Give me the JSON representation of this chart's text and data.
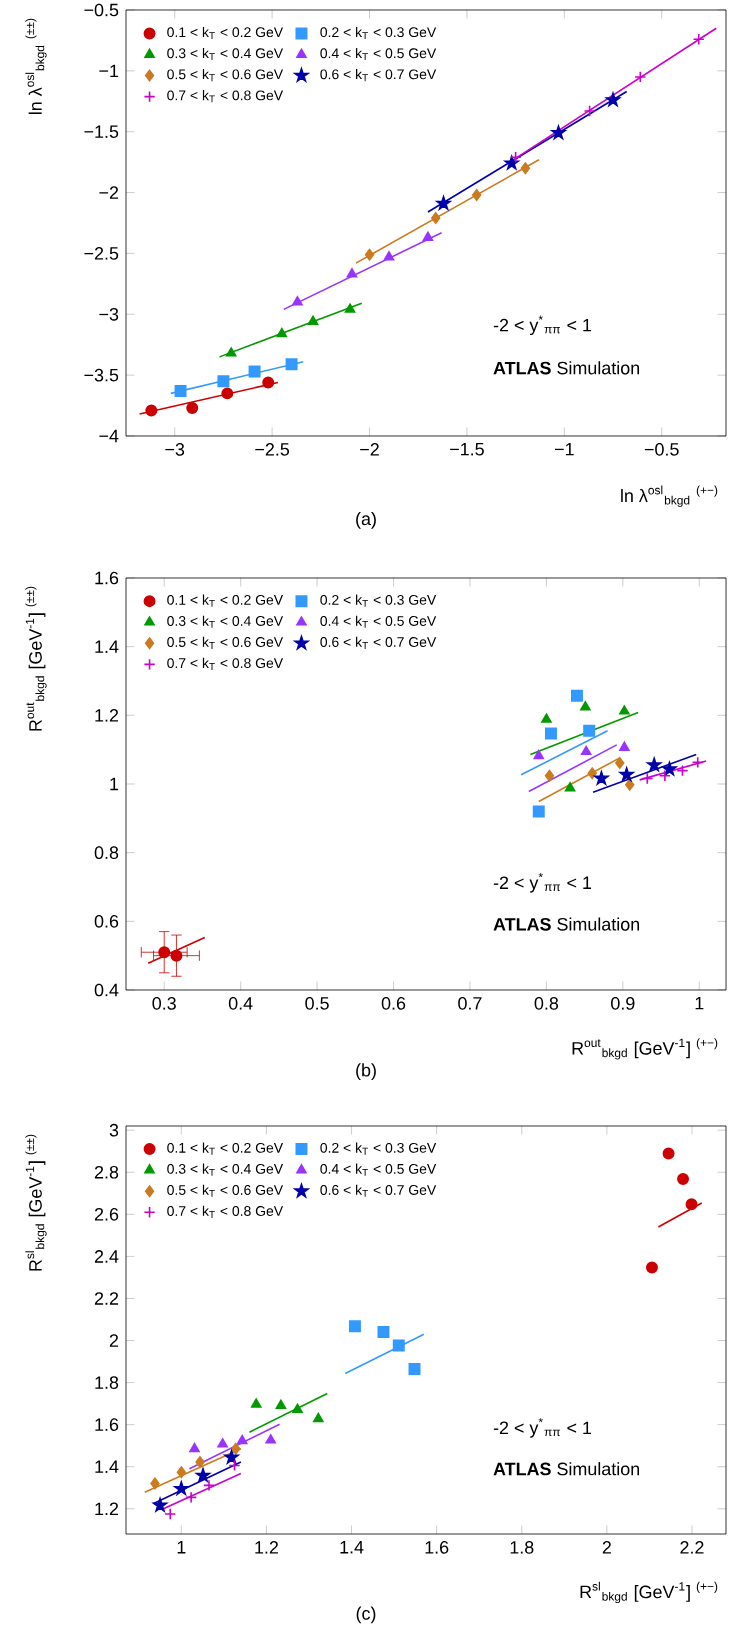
{
  "chart_data": [
    {
      "type": "scatter",
      "title": "(a)",
      "xlabel": "ln λ$^{osl}$$_{bkgd}$   $^{(+−)}$",
      "ylabel": "ln λ$^{osl}$$_{bkgd}$   $^{(±±)}$",
      "xlim": [
        -3.25,
        -0.17
      ],
      "ylim": [
        -4,
        -0.5
      ],
      "xticks": [
        {
          "value": -3,
          "label": "−3"
        },
        {
          "value": -2.5,
          "label": "−2.5"
        },
        {
          "value": -2,
          "label": "−2"
        },
        {
          "value": -1.5,
          "label": "−1.5"
        },
        {
          "value": -1,
          "label": "−1"
        },
        {
          "value": -0.5,
          "label": "−0.5"
        }
      ],
      "yticks": [
        {
          "value": -4,
          "label": "−4"
        },
        {
          "value": -3.5,
          "label": "−3.5"
        },
        {
          "value": -3,
          "label": "−3"
        },
        {
          "value": -2.5,
          "label": "−2.5"
        },
        {
          "value": -2,
          "label": "−2"
        },
        {
          "value": -1.5,
          "label": "−1.5"
        },
        {
          "value": -1,
          "label": "−1"
        },
        {
          "value": -0.5,
          "label": "−0.5"
        }
      ],
      "legend": "top left",
      "annotations": [
        "-2 < y$^{*}$$_{ππ}$ < 1",
        "**ATLAS** Simulation"
      ],
      "series": [
        {
          "name": "0.1 < k$_{T}$ < 0.2 GeV",
          "color": "#cc0000",
          "marker": "circle",
          "x": [
            -3.12,
            -2.91,
            -2.73,
            -2.52
          ],
          "values": [
            -3.79,
            -3.77,
            -3.65,
            -3.56
          ]
        },
        {
          "name": "0.2 < k$_{T}$ < 0.3 GeV",
          "color": "#3399ff",
          "marker": "square",
          "x": [
            -2.97,
            -2.75,
            -2.59,
            -2.4
          ],
          "values": [
            -3.63,
            -3.55,
            -3.47,
            -3.41
          ]
        },
        {
          "name": "0.3 < k$_{T}$ < 0.4 GeV",
          "color": "#009900",
          "marker": "triangle",
          "x": [
            -2.71,
            -2.45,
            -2.29,
            -2.1
          ],
          "values": [
            -3.32,
            -3.16,
            -3.06,
            -2.96
          ]
        },
        {
          "name": "0.4 < k$_{T}$ < 0.5 GeV",
          "color": "#9933ff",
          "marker": "triangle",
          "x": [
            -2.37,
            -2.09,
            -1.9,
            -1.7
          ],
          "values": [
            -2.9,
            -2.67,
            -2.53,
            -2.37
          ]
        },
        {
          "name": "0.5 < k$_{T}$ < 0.6 GeV",
          "color": "#cc7a1f",
          "marker": "diamond",
          "x": [
            -2.0,
            -1.66,
            -1.45,
            -1.2
          ],
          "values": [
            -2.51,
            -2.21,
            -2.02,
            -1.8
          ]
        },
        {
          "name": "0.6 < k$_{T}$ < 0.7 GeV",
          "color": "#0000aa",
          "marker": "star",
          "x": [
            -1.62,
            -1.27,
            -1.03,
            -0.75
          ],
          "values": [
            -2.09,
            -1.76,
            -1.51,
            -1.24
          ]
        },
        {
          "name": "0.7 < k$_{T}$ < 0.8 GeV",
          "color": "#cc00cc",
          "marker": "cross",
          "x": [
            -1.25,
            -0.87,
            -0.61,
            -0.31
          ],
          "values": [
            -1.71,
            -1.33,
            -1.05,
            -0.74
          ]
        },
        {
          "type": "line",
          "color": "#cc0000",
          "x": [
            -3.18,
            -2.47
          ],
          "values": [
            -3.82,
            -3.56
          ]
        },
        {
          "type": "line",
          "color": "#3399ff",
          "x": [
            -3.02,
            -2.34
          ],
          "values": [
            -3.65,
            -3.39
          ]
        },
        {
          "type": "line",
          "color": "#009900",
          "x": [
            -2.77,
            -2.04
          ],
          "values": [
            -3.35,
            -2.91
          ]
        },
        {
          "type": "line",
          "color": "#9933ff",
          "x": [
            -2.44,
            -1.63
          ],
          "values": [
            -2.96,
            -2.33
          ]
        },
        {
          "type": "line",
          "color": "#cc7a1f",
          "x": [
            -2.07,
            -1.13
          ],
          "values": [
            -2.58,
            -1.73
          ]
        },
        {
          "type": "line",
          "color": "#0000aa",
          "x": [
            -1.7,
            -0.68
          ],
          "values": [
            -2.16,
            -1.17
          ]
        },
        {
          "type": "line",
          "color": "#cc00cc",
          "x": [
            -1.28,
            -0.22
          ],
          "values": [
            -1.75,
            -0.65
          ]
        }
      ]
    },
    {
      "type": "scatter",
      "title": "(b)",
      "xlabel": "R$^{out}$$_{bkgd}$ [GeV$^{-1}$]   $^{(+−)}$",
      "ylabel": "R$^{out}$$_{bkgd}$ [GeV$^{-1}$]   $^{(±±)}$",
      "xlim": [
        0.25,
        1.035
      ],
      "ylim": [
        0.4,
        1.6
      ],
      "xticks": [
        0.3,
        0.4,
        0.5,
        0.6,
        0.7,
        0.8,
        0.9,
        1
      ],
      "yticks": [
        0.4,
        0.6,
        0.8,
        1,
        1.2,
        1.4,
        1.6
      ],
      "legend": "top left",
      "annotations": [
        "-2 < y$^{*}$$_{ππ}$ < 1",
        "**ATLAS** Simulation"
      ],
      "series": [
        {
          "name": "0.1 < k$_{T}$ < 0.2 GeV",
          "color": "#cc0000",
          "marker": "circle",
          "x": [
            0.3,
            0.316
          ],
          "values": [
            0.51,
            0.5
          ],
          "errors": [
            0.06,
            0.06
          ],
          "xerrors": [
            0.03,
            0.03
          ]
        },
        {
          "name": "0.2 < k$_{T}$ < 0.3 GeV",
          "color": "#3399ff",
          "marker": "square",
          "x": [
            0.79,
            0.806,
            0.84,
            0.856
          ],
          "values": [
            0.92,
            1.147,
            1.257,
            1.155
          ]
        },
        {
          "name": "0.3 < k$_{T}$ < 0.4 GeV",
          "color": "#009900",
          "marker": "triangle",
          "x": [
            0.8,
            0.831,
            0.851,
            0.902
          ],
          "values": [
            1.188,
            0.988,
            1.224,
            1.212
          ]
        },
        {
          "name": "0.4 < k$_{T}$ < 0.5 GeV",
          "color": "#9933ff",
          "marker": "triangle",
          "x": [
            0.79,
            0.852,
            0.902
          ],
          "values": [
            1.082,
            1.094,
            1.106
          ]
        },
        {
          "name": "0.5 < k$_{T}$ < 0.6 GeV",
          "color": "#cc7a1f",
          "marker": "diamond",
          "x": [
            0.804,
            0.86,
            0.896,
            0.909
          ],
          "values": [
            1.024,
            1.031,
            1.061,
            0.998
          ]
        },
        {
          "name": "0.6 < k$_{T}$ < 0.7 GeV",
          "color": "#0000aa",
          "marker": "star",
          "x": [
            0.872,
            0.905,
            0.941,
            0.961
          ],
          "values": [
            1.016,
            1.027,
            1.055,
            1.043
          ]
        },
        {
          "name": "0.7 < k$_{T}$ < 0.8 GeV",
          "color": "#cc00cc",
          "marker": "cross",
          "x": [
            0.932,
            0.955,
            0.978,
            0.998
          ],
          "values": [
            1.016,
            1.024,
            1.039,
            1.063
          ]
        },
        {
          "type": "line",
          "color": "#cc0000",
          "x": [
            0.279,
            0.353
          ],
          "values": [
            0.478,
            0.553
          ]
        },
        {
          "type": "line",
          "color": "#3399ff",
          "x": [
            0.767,
            0.88
          ],
          "values": [
            1.027,
            1.155
          ]
        },
        {
          "type": "line",
          "color": "#009900",
          "x": [
            0.779,
            0.92
          ],
          "values": [
            1.086,
            1.208
          ]
        },
        {
          "type": "line",
          "color": "#9933ff",
          "x": [
            0.777,
            0.892
          ],
          "values": [
            0.978,
            1.114
          ]
        },
        {
          "type": "line",
          "color": "#cc7a1f",
          "x": [
            0.79,
            0.896
          ],
          "values": [
            0.949,
            1.076
          ]
        },
        {
          "type": "line",
          "color": "#0000aa",
          "x": [
            0.861,
            0.996
          ],
          "values": [
            0.976,
            1.086
          ]
        },
        {
          "type": "line",
          "color": "#cc00cc",
          "x": [
            0.922,
            1.009
          ],
          "values": [
            1.012,
            1.067
          ]
        }
      ]
    },
    {
      "type": "scatter",
      "title": "(c)",
      "xlabel": "R$^{sl}$$_{bkgd}$ [GeV$^{-1}$]   $^{(+−)}$",
      "ylabel": "R$^{sl}$$_{bkgd}$ [GeV$^{-1}$]   $^{(±±)}$",
      "xlim": [
        0.87,
        2.28
      ],
      "ylim": [
        1.08,
        3.02
      ],
      "xticks": [
        1,
        1.2,
        1.4,
        1.6,
        1.8,
        2,
        2.2
      ],
      "yticks": [
        1.2,
        1.4,
        1.6,
        1.8,
        2,
        2.2,
        2.4,
        2.6,
        2.8,
        3
      ],
      "legend": "top left",
      "annotations": [
        "-2 < y$^{*}$$_{ππ}$ < 1",
        "**ATLAS** Simulation"
      ],
      "series": [
        {
          "name": "0.1 < k$_{T}$ < 0.2 GeV",
          "color": "#cc0000",
          "marker": "circle",
          "x": [
            2.106,
            2.145,
            2.179,
            2.199
          ],
          "values": [
            2.347,
            2.889,
            2.768,
            2.648
          ]
        },
        {
          "name": "0.2 < k$_{T}$ < 0.3 GeV",
          "color": "#3399ff",
          "marker": "square",
          "x": [
            1.408,
            1.475,
            1.511,
            1.548
          ],
          "values": [
            2.068,
            2.04,
            1.976,
            1.865
          ]
        },
        {
          "name": "0.3 < k$_{T}$ < 0.4 GeV",
          "color": "#009900",
          "marker": "triangle",
          "x": [
            1.176,
            1.234,
            1.273,
            1.322
          ],
          "values": [
            1.697,
            1.691,
            1.672,
            1.628
          ]
        },
        {
          "name": "0.4 < k$_{T}$ < 0.5 GeV",
          "color": "#9933ff",
          "marker": "triangle",
          "x": [
            1.031,
            1.097,
            1.143,
            1.21
          ],
          "values": [
            1.485,
            1.507,
            1.523,
            1.526
          ]
        },
        {
          "name": "0.5 < k$_{T}$ < 0.6 GeV",
          "color": "#cc7a1f",
          "marker": "diamond",
          "x": [
            0.938,
            1.0,
            1.044,
            1.128
          ],
          "values": [
            1.32,
            1.374,
            1.422,
            1.485
          ]
        },
        {
          "name": "0.6 < k$_{T}$ < 0.7 GeV",
          "color": "#0000aa",
          "marker": "star",
          "x": [
            0.95,
            1.0,
            1.051,
            1.118
          ],
          "values": [
            1.216,
            1.295,
            1.358,
            1.444
          ]
        },
        {
          "name": "0.7 < k$_{T}$ < 0.8 GeV",
          "color": "#cc00cc",
          "marker": "cross",
          "x": [
            0.974,
            1.023,
            1.065,
            1.125
          ],
          "values": [
            1.175,
            1.254,
            1.311,
            1.406
          ]
        },
        {
          "type": "line",
          "color": "#cc0000",
          "x": [
            2.121,
            2.223
          ],
          "values": [
            2.54,
            2.654
          ]
        },
        {
          "type": "line",
          "color": "#3399ff",
          "x": [
            1.385,
            1.57
          ],
          "values": [
            1.843,
            2.03
          ]
        },
        {
          "type": "line",
          "color": "#009900",
          "x": [
            1.16,
            1.343
          ],
          "values": [
            1.564,
            1.748
          ]
        },
        {
          "type": "line",
          "color": "#9933ff",
          "x": [
            1.019,
            1.231
          ],
          "values": [
            1.39,
            1.602
          ]
        },
        {
          "type": "line",
          "color": "#cc7a1f",
          "x": [
            0.914,
            1.14
          ],
          "values": [
            1.279,
            1.485
          ]
        },
        {
          "type": "line",
          "color": "#0000aa",
          "x": [
            0.935,
            1.14
          ],
          "values": [
            1.225,
            1.422
          ]
        },
        {
          "type": "line",
          "color": "#cc00cc",
          "x": [
            0.958,
            1.14
          ],
          "values": [
            1.2,
            1.368
          ]
        }
      ]
    }
  ]
}
